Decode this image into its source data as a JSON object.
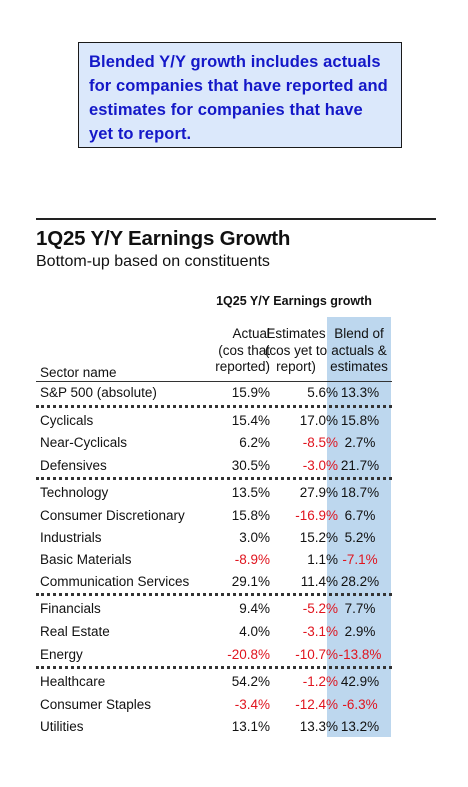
{
  "callout": {
    "lines": [
      "Blended Y/Y growth includes actuals",
      "for companies that have reported and",
      "estimates for companies that have",
      "yet to report."
    ]
  },
  "title": "1Q25 Y/Y Earnings Growth",
  "subtitle": "Bottom-up based on constituents",
  "table": {
    "group_title": "1Q25 Y/Y Earnings growth",
    "headers": {
      "sector": "Sector name",
      "actual": [
        "Actual",
        "(cos that",
        "reported)"
      ],
      "estimates": [
        "Estimates",
        "(cos yet to",
        "report)"
      ],
      "blend": [
        "Blend of",
        "actuals &",
        "estimates"
      ]
    },
    "rows": [
      {
        "name": "S&P 500 (absolute)",
        "actual": "15.9%",
        "estimates": "5.6%",
        "blend": "13.3%"
      },
      {
        "name": "Cyclicals",
        "actual": "15.4%",
        "estimates": "17.0%",
        "blend": "15.8%"
      },
      {
        "name": "Near-Cyclicals",
        "actual": "6.2%",
        "estimates": "-8.5%",
        "blend": "2.7%"
      },
      {
        "name": "Defensives",
        "actual": "30.5%",
        "estimates": "-3.0%",
        "blend": "21.7%"
      },
      {
        "name": "Technology",
        "actual": "13.5%",
        "estimates": "27.9%",
        "blend": "18.7%"
      },
      {
        "name": "Consumer Discretionary",
        "actual": "15.8%",
        "estimates": "-16.9%",
        "blend": "6.7%"
      },
      {
        "name": "Industrials",
        "actual": "3.0%",
        "estimates": "15.2%",
        "blend": "5.2%"
      },
      {
        "name": "Basic Materials",
        "actual": "-8.9%",
        "estimates": "1.1%",
        "blend": "-7.1%"
      },
      {
        "name": "Communication Services",
        "actual": "29.1%",
        "estimates": "11.4%",
        "blend": "28.2%"
      },
      {
        "name": "Financials",
        "actual": "9.4%",
        "estimates": "-5.2%",
        "blend": "7.7%"
      },
      {
        "name": "Real Estate",
        "actual": "4.0%",
        "estimates": "-3.1%",
        "blend": "2.9%"
      },
      {
        "name": "Energy",
        "actual": "-20.8%",
        "estimates": "-10.7%",
        "blend": "-13.8%"
      },
      {
        "name": "Healthcare",
        "actual": "54.2%",
        "estimates": "-1.2%",
        "blend": "42.9%"
      },
      {
        "name": "Consumer Staples",
        "actual": "-3.4%",
        "estimates": "-12.4%",
        "blend": "-6.3%"
      },
      {
        "name": "Utilities",
        "actual": "13.1%",
        "estimates": "13.3%",
        "blend": "13.2%"
      }
    ]
  },
  "colors": {
    "callout_text": "#1418c8",
    "callout_bg": "#dbe8fb",
    "blend_highlight": "#bdd7ee",
    "negative": "#e0141e"
  }
}
